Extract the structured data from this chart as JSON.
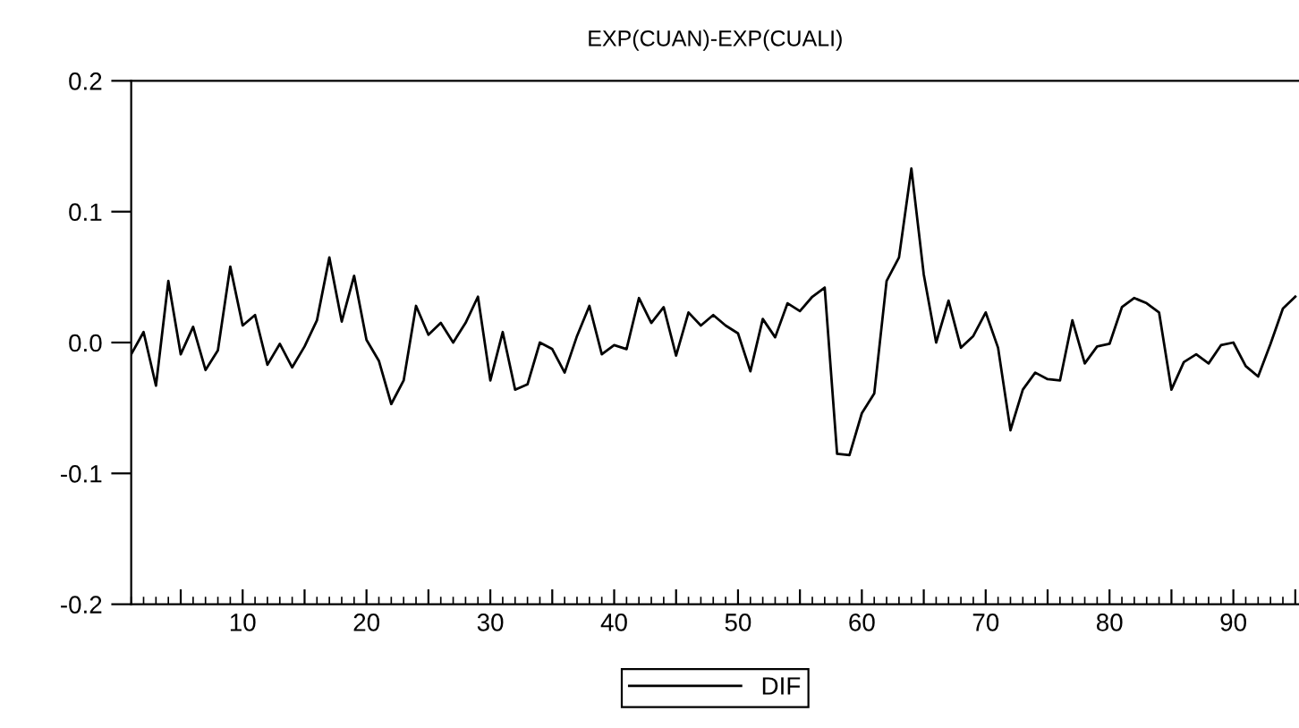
{
  "chart_data": {
    "type": "line",
    "title": "EXP(CUAN)-EXP(CUALI)",
    "x": [
      1,
      2,
      3,
      4,
      5,
      6,
      7,
      8,
      9,
      10,
      11,
      12,
      13,
      14,
      15,
      16,
      17,
      18,
      19,
      20,
      21,
      22,
      23,
      24,
      25,
      26,
      27,
      28,
      29,
      30,
      31,
      32,
      33,
      34,
      35,
      36,
      37,
      38,
      39,
      40,
      41,
      42,
      43,
      44,
      45,
      46,
      47,
      48,
      49,
      50,
      51,
      52,
      53,
      54,
      55,
      56,
      57,
      58,
      59,
      60,
      61,
      62,
      63,
      64,
      65,
      66,
      67,
      68,
      69,
      70,
      71,
      72,
      73,
      74,
      75,
      76,
      77,
      78,
      79,
      80,
      81,
      82,
      83,
      84,
      85,
      86,
      87,
      88,
      89,
      90,
      91,
      92,
      93,
      94,
      95
    ],
    "series": [
      {
        "name": "DIF",
        "color": "#000000",
        "values": [
          -0.009,
          0.008,
          -0.033,
          0.047,
          -0.009,
          0.012,
          -0.021,
          -0.006,
          0.058,
          0.013,
          0.021,
          -0.017,
          -0.001,
          -0.019,
          -0.003,
          0.017,
          0.065,
          0.016,
          0.051,
          0.002,
          -0.014,
          -0.047,
          -0.029,
          0.028,
          0.006,
          0.015,
          0.0,
          0.015,
          0.035,
          -0.029,
          0.008,
          -0.036,
          -0.032,
          0.0,
          -0.005,
          -0.023,
          0.005,
          0.028,
          -0.009,
          -0.002,
          -0.005,
          0.034,
          0.015,
          0.027,
          -0.01,
          0.023,
          0.013,
          0.021,
          0.013,
          0.007,
          -0.022,
          0.018,
          0.004,
          0.03,
          0.024,
          0.035,
          0.042,
          -0.085,
          -0.086,
          -0.054,
          -0.039,
          0.047,
          0.065,
          0.133,
          0.052,
          0.0,
          0.032,
          -0.004,
          0.005,
          0.023,
          -0.004,
          -0.067,
          -0.036,
          -0.023,
          -0.028,
          -0.029,
          0.017,
          -0.016,
          -0.003,
          -0.001,
          0.027,
          0.034,
          0.03,
          0.023,
          -0.036,
          -0.015,
          -0.009,
          -0.016,
          -0.002,
          0.0,
          -0.018,
          -0.026,
          -0.001,
          0.026,
          0.035
        ]
      }
    ],
    "xlim": [
      1,
      95.3
    ],
    "xticks": [
      {
        "value": 5,
        "label": null
      },
      10,
      {
        "value": 15,
        "label": null
      },
      20,
      {
        "value": 25,
        "label": null
      },
      30,
      {
        "value": 35,
        "label": null
      },
      40,
      {
        "value": 45,
        "label": null
      },
      50,
      {
        "value": 55,
        "label": null
      },
      60,
      {
        "value": 65,
        "label": null
      },
      70,
      {
        "value": 75,
        "label": null
      },
      80,
      {
        "value": 85,
        "label": null
      },
      90,
      {
        "value": 95,
        "label": null
      }
    ],
    "ylim": [
      -0.2,
      0.2
    ],
    "yticks": [
      {
        "value": -0.2,
        "label": "-0.2"
      },
      {
        "value": -0.1,
        "label": "-0.1"
      },
      {
        "value": 0,
        "label": "0.0"
      },
      {
        "value": 0.1,
        "label": "0.1"
      },
      {
        "value": 0.2,
        "label": "0.2"
      }
    ],
    "grid": false,
    "legend": "bottom",
    "marker": "none",
    "line_style": "solid"
  }
}
